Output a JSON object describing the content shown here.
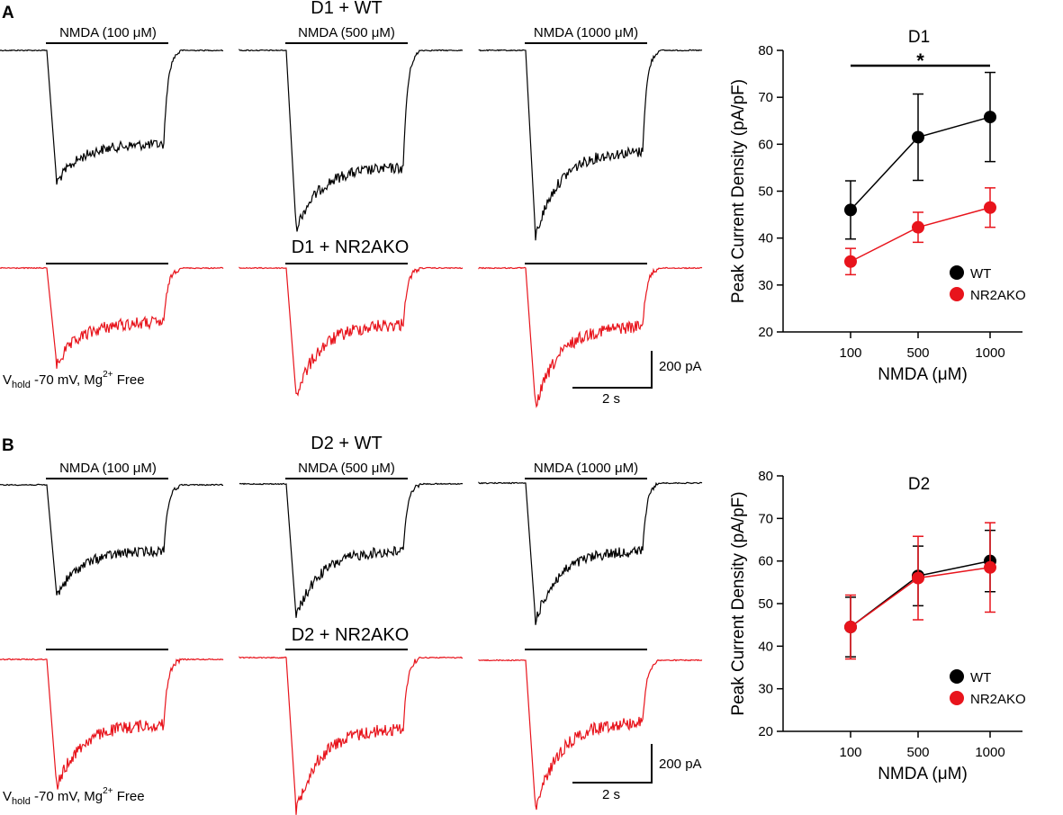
{
  "panels": [
    {
      "letter": "A",
      "wt_title": "D1 + WT",
      "ko_title": "D1 + NR2AKO",
      "conc_labels": [
        "NMDA (100 μM)",
        "NMDA (500 μM)",
        "NMDA (1000 μM)"
      ],
      "vhold": {
        "v": "V",
        "sub": "hold",
        "mid": " -70 mV, Mg",
        "sup": "2+",
        "end": " Free"
      },
      "scale": {
        "y_label": "200 pA",
        "x_label": "2 s"
      },
      "trace_colors": {
        "wt": "#000000",
        "ko": "#e8141c"
      }
    },
    {
      "letter": "B",
      "wt_title": "D2 + WT",
      "ko_title": "D2 + NR2AKO",
      "conc_labels": [
        "NMDA (100 μM)",
        "NMDA (500 μM)",
        "NMDA (1000 μM)"
      ],
      "vhold": {
        "v": "V",
        "sub": "hold",
        "mid": " -70 mV, Mg",
        "sup": "2+",
        "end": " Free"
      },
      "scale": {
        "y_label": "200 pA",
        "x_label": "2 s"
      },
      "trace_colors": {
        "wt": "#000000",
        "ko": "#e8141c"
      }
    }
  ],
  "chart_data": [
    {
      "type": "line",
      "title": "D1",
      "xlabel": "NMDA (μM)",
      "ylabel": "Peak Current Density (pA/pF)",
      "categories": [
        "100",
        "500",
        "1000"
      ],
      "ylim": [
        20,
        80
      ],
      "yticks": [
        "20",
        "30",
        "40",
        "50",
        "60",
        "70",
        "80"
      ],
      "series": [
        {
          "name": "WT",
          "color": "#000000",
          "values": [
            46,
            61.5,
            65.8
          ],
          "errors": [
            6.2,
            9.2,
            9.5
          ]
        },
        {
          "name": "NR2AKO",
          "color": "#e8141c",
          "values": [
            35,
            42.3,
            46.5
          ],
          "errors": [
            2.8,
            3.2,
            4.2
          ]
        }
      ],
      "significance": {
        "label": "*",
        "from": "100",
        "to": "1000"
      }
    },
    {
      "type": "line",
      "title": "D2",
      "xlabel": "NMDA (μM)",
      "ylabel": "Peak Current Density (pA/pF)",
      "categories": [
        "100",
        "500",
        "1000"
      ],
      "ylim": [
        20,
        80
      ],
      "yticks": [
        "20",
        "30",
        "40",
        "50",
        "60",
        "70",
        "80"
      ],
      "series": [
        {
          "name": "WT",
          "color": "#000000",
          "values": [
            44.5,
            56.5,
            60
          ],
          "errors": [
            7,
            7,
            7.2
          ]
        },
        {
          "name": "NR2AKO",
          "color": "#e8141c",
          "values": [
            44.5,
            56,
            58.5
          ],
          "errors": [
            7.5,
            9.8,
            10.5
          ]
        }
      ]
    }
  ]
}
